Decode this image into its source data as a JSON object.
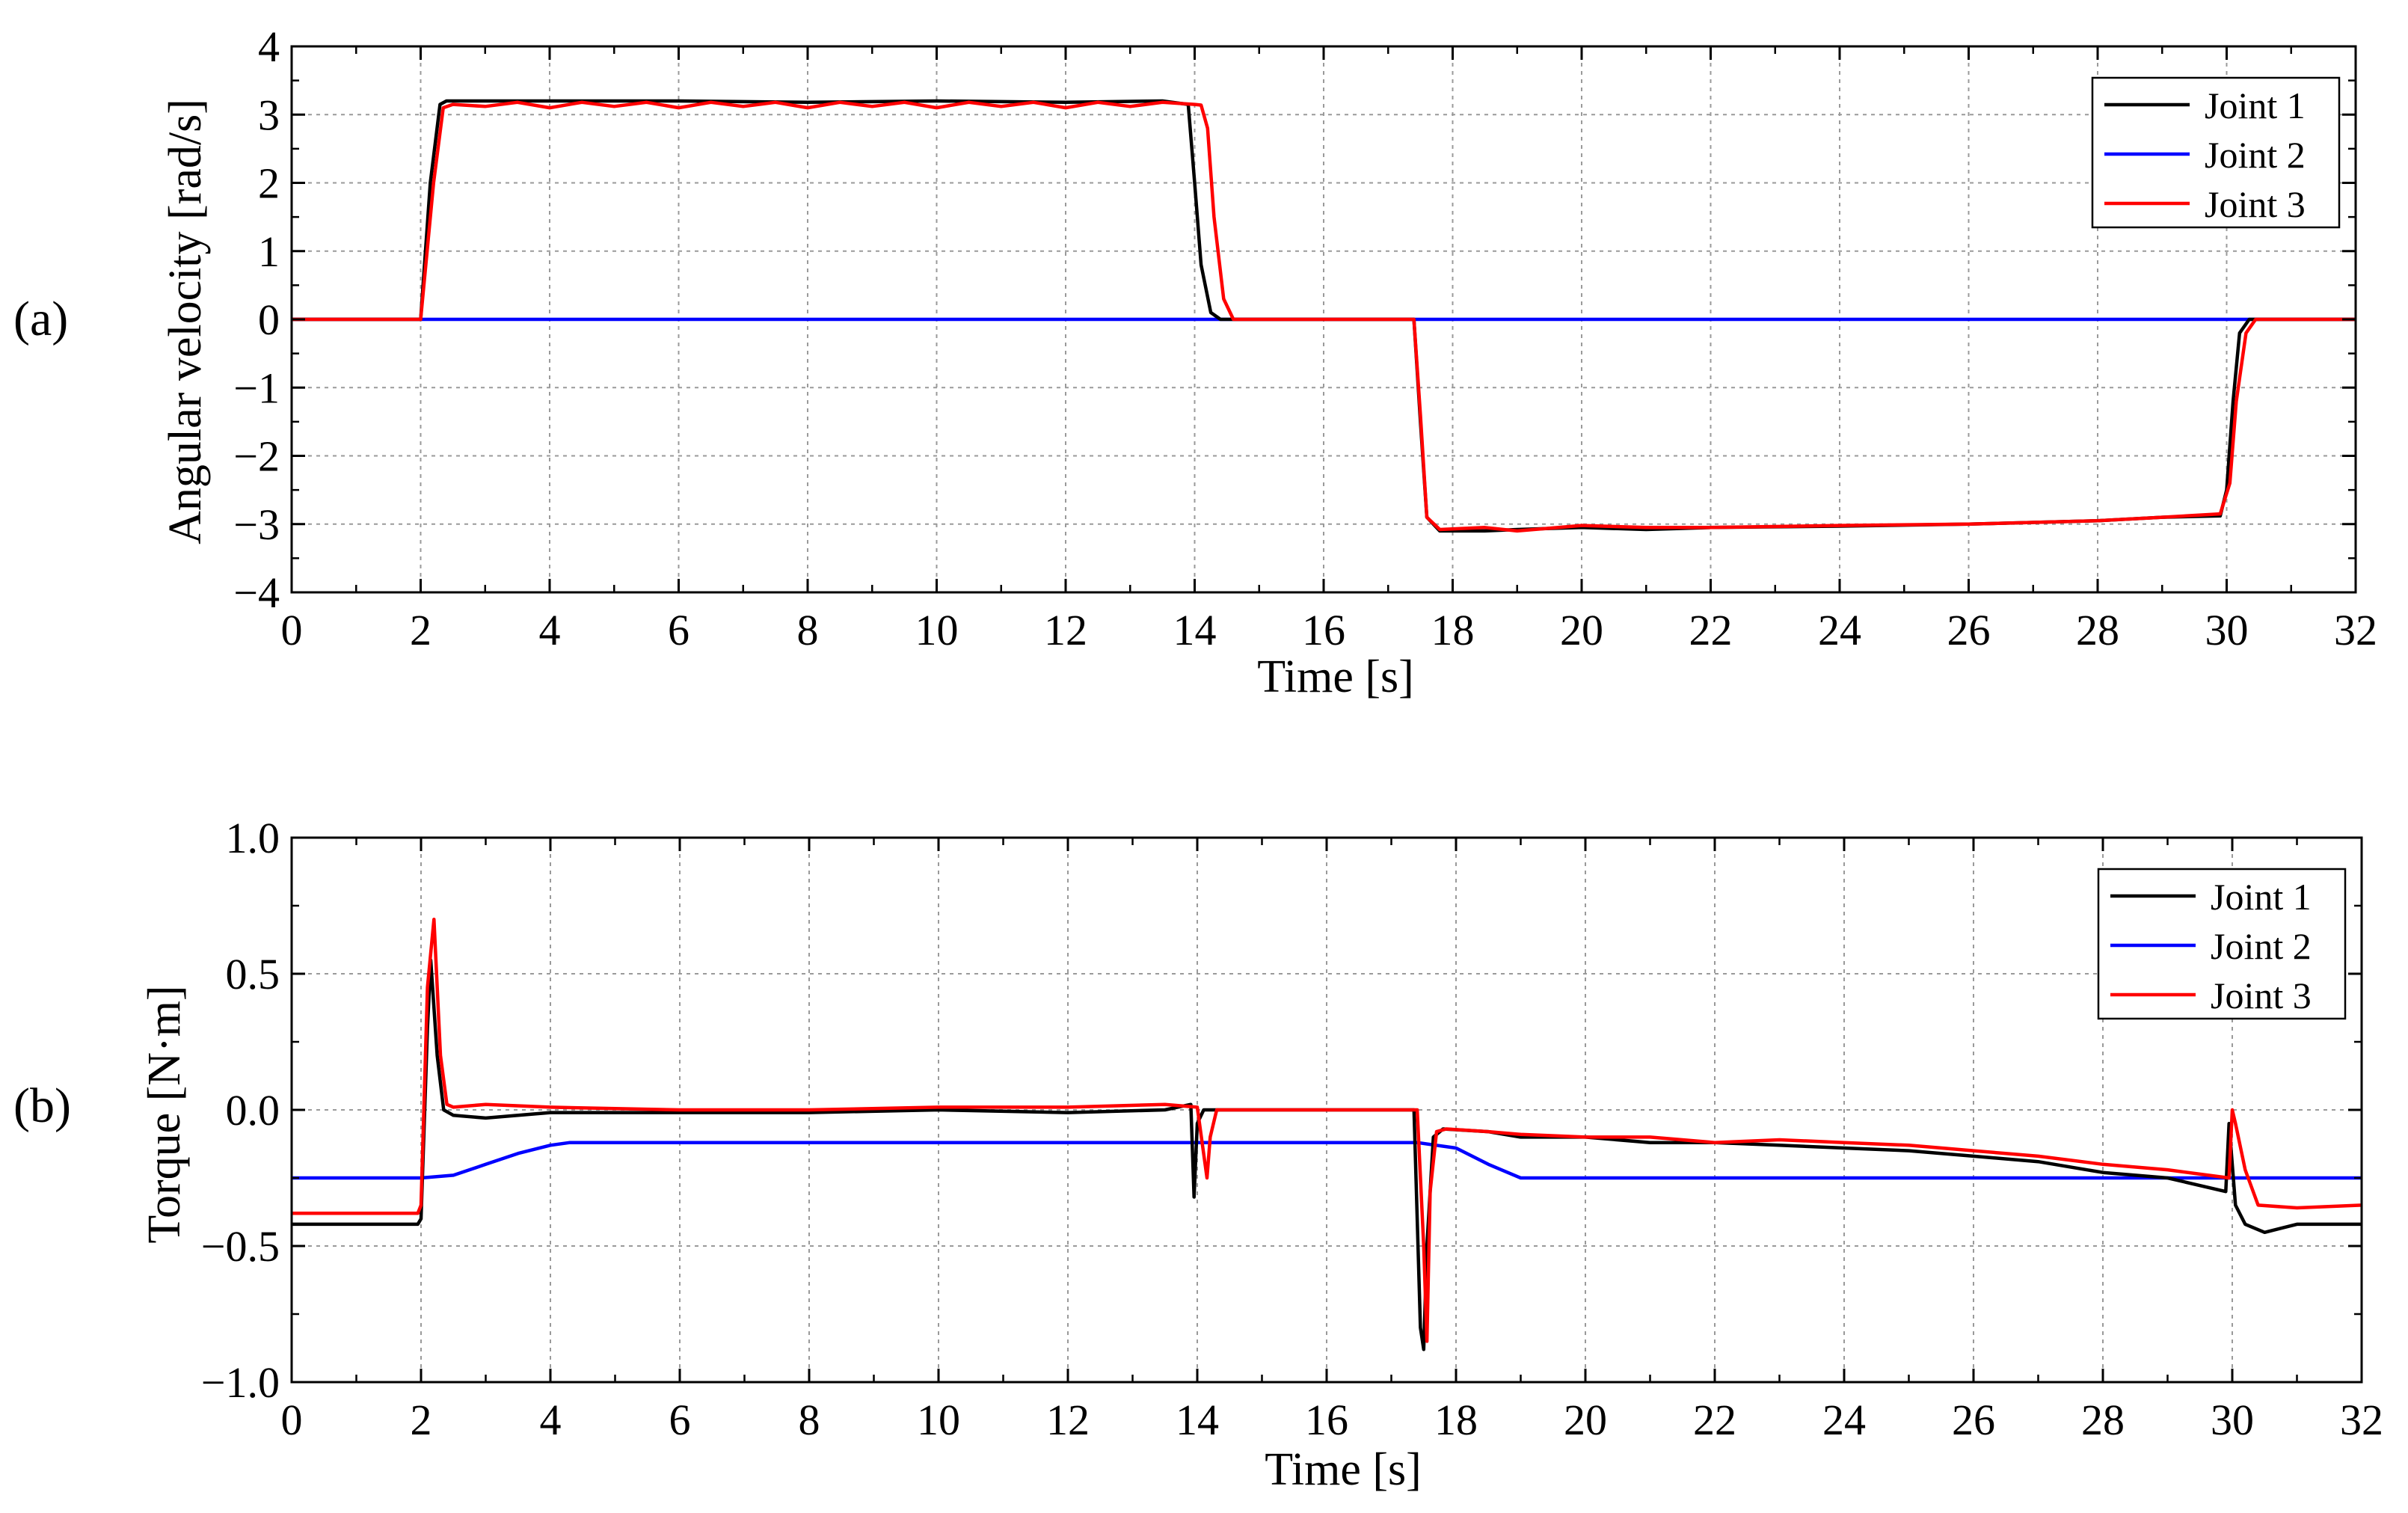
{
  "panels": [
    {
      "tag": "(a)",
      "xlabel": "Time [s]",
      "ylabel": "Angular velocity [rad/s]"
    },
    {
      "tag": "(b)",
      "xlabel": "Time [s]",
      "ylabel": "Torque [N·m]"
    }
  ],
  "chart_data": [
    {
      "type": "line",
      "title": "",
      "xlabel": "Time [s]",
      "ylabel": "Angular velocity [rad/s]",
      "xlim": [
        0,
        32
      ],
      "ylim": [
        -4,
        4
      ],
      "xticks": [
        0,
        2,
        4,
        6,
        8,
        10,
        12,
        14,
        16,
        18,
        20,
        22,
        24,
        26,
        28,
        30,
        32
      ],
      "yticks": [
        -4,
        -3,
        -2,
        -1,
        0,
        1,
        2,
        3,
        4
      ],
      "ytick_labels": [
        "−4",
        "−3",
        "−2",
        "−1",
        "0",
        "1",
        "2",
        "3",
        "4"
      ],
      "grid": true,
      "legend_position": "top-right",
      "series": [
        {
          "name": "Joint 1",
          "color": "#000000",
          "x": [
            0,
            2.0,
            2.15,
            2.3,
            2.4,
            4,
            6,
            8,
            10,
            12,
            13.5,
            13.9,
            14.0,
            14.1,
            14.25,
            14.4,
            17.4,
            17.5,
            17.6,
            17.8,
            18.5,
            19,
            20,
            21,
            22,
            24,
            26,
            28,
            29,
            29.9,
            30.0,
            30.1,
            30.2,
            30.35,
            32
          ],
          "y": [
            0,
            0,
            2.0,
            3.15,
            3.2,
            3.2,
            3.2,
            3.18,
            3.2,
            3.18,
            3.2,
            3.15,
            2.0,
            0.8,
            0.1,
            0,
            0,
            -1.5,
            -2.9,
            -3.1,
            -3.1,
            -3.08,
            -3.05,
            -3.08,
            -3.05,
            -3.03,
            -3.0,
            -2.95,
            -2.9,
            -2.88,
            -2.5,
            -1.2,
            -0.2,
            0,
            0
          ]
        },
        {
          "name": "Joint 2",
          "color": "#0000ff",
          "x": [
            0,
            32
          ],
          "y": [
            0,
            0
          ]
        },
        {
          "name": "Joint 3",
          "color": "#ff0000",
          "x": [
            0,
            2.0,
            2.2,
            2.35,
            2.5,
            3,
            3.5,
            4,
            4.5,
            5,
            5.5,
            6,
            6.5,
            7,
            7.5,
            8,
            8.5,
            9,
            9.5,
            10,
            10.5,
            11,
            11.5,
            12,
            12.5,
            13,
            13.5,
            14,
            14.1,
            14.2,
            14.3,
            14.45,
            14.6,
            17.4,
            17.5,
            17.6,
            17.8,
            18.5,
            19,
            20,
            21,
            22,
            24,
            26,
            28,
            29,
            29.9,
            30.05,
            30.15,
            30.3,
            30.45,
            32
          ],
          "y": [
            0,
            0,
            2.0,
            3.1,
            3.15,
            3.12,
            3.18,
            3.1,
            3.18,
            3.12,
            3.18,
            3.1,
            3.18,
            3.12,
            3.18,
            3.1,
            3.18,
            3.12,
            3.18,
            3.1,
            3.18,
            3.12,
            3.18,
            3.1,
            3.18,
            3.12,
            3.18,
            3.15,
            3.14,
            2.8,
            1.5,
            0.3,
            0,
            0,
            -1.4,
            -2.9,
            -3.08,
            -3.05,
            -3.1,
            -3.02,
            -3.05,
            -3.05,
            -3.02,
            -3.0,
            -2.95,
            -2.9,
            -2.85,
            -2.4,
            -1.2,
            -0.2,
            0,
            0
          ]
        }
      ]
    },
    {
      "type": "line",
      "title": "",
      "xlabel": "Time [s]",
      "ylabel": "Torque [N·m]",
      "xlim": [
        0,
        32
      ],
      "ylim": [
        -1.0,
        1.0
      ],
      "xticks": [
        0,
        2,
        4,
        6,
        8,
        10,
        12,
        14,
        16,
        18,
        20,
        22,
        24,
        26,
        28,
        30,
        32
      ],
      "yticks": [
        -1.0,
        -0.5,
        0.0,
        0.5,
        1.0
      ],
      "ytick_labels": [
        "−1.0",
        "−0.5",
        "0.0",
        "0.5",
        "1.0"
      ],
      "grid": true,
      "legend_position": "top-right",
      "series": [
        {
          "name": "Joint 1",
          "color": "#000000",
          "x": [
            0,
            1.0,
            1.95,
            2.0,
            2.1,
            2.15,
            2.25,
            2.35,
            2.5,
            3,
            4,
            6,
            8,
            10,
            12,
            13.5,
            13.9,
            13.95,
            14.0,
            14.1,
            14.4,
            17.35,
            17.45,
            17.5,
            17.55,
            17.65,
            17.8,
            18.5,
            19,
            20,
            21,
            22,
            23,
            24,
            25,
            26,
            27,
            28,
            29,
            29.9,
            29.95,
            30.05,
            30.2,
            30.5,
            31,
            32
          ],
          "y": [
            -0.42,
            -0.42,
            -0.42,
            -0.4,
            0.3,
            0.55,
            0.2,
            0.0,
            -0.02,
            -0.03,
            -0.01,
            -0.01,
            -0.01,
            0.0,
            -0.01,
            0.0,
            0.02,
            -0.32,
            -0.05,
            0.0,
            0.0,
            0.0,
            -0.8,
            -0.88,
            -0.5,
            -0.1,
            -0.07,
            -0.08,
            -0.1,
            -0.1,
            -0.12,
            -0.12,
            -0.13,
            -0.14,
            -0.15,
            -0.17,
            -0.19,
            -0.23,
            -0.25,
            -0.3,
            -0.05,
            -0.35,
            -0.42,
            -0.45,
            -0.42,
            -0.42
          ]
        },
        {
          "name": "Joint 2",
          "color": "#0000ff",
          "x": [
            0,
            2.0,
            2.5,
            3.0,
            3.5,
            4.0,
            4.3,
            6,
            10,
            14,
            17.4,
            18,
            18.5,
            19,
            20,
            24,
            28,
            30,
            32
          ],
          "y": [
            -0.25,
            -0.25,
            -0.24,
            -0.2,
            -0.16,
            -0.13,
            -0.12,
            -0.12,
            -0.12,
            -0.12,
            -0.12,
            -0.14,
            -0.2,
            -0.25,
            -0.25,
            -0.25,
            -0.25,
            -0.25,
            -0.25
          ]
        },
        {
          "name": "Joint 3",
          "color": "#ff0000",
          "x": [
            0,
            1.0,
            1.95,
            2.0,
            2.1,
            2.2,
            2.3,
            2.4,
            2.5,
            3,
            4,
            6,
            8,
            10,
            12,
            13.5,
            14.0,
            14.15,
            14.2,
            14.3,
            14.5,
            17.4,
            17.5,
            17.55,
            17.6,
            17.7,
            17.85,
            18.5,
            19,
            20,
            21,
            22,
            23,
            24,
            25,
            26,
            27,
            28,
            29,
            29.95,
            30.0,
            30.05,
            30.2,
            30.4,
            31,
            32
          ],
          "y": [
            -0.38,
            -0.38,
            -0.38,
            -0.35,
            0.45,
            0.7,
            0.2,
            0.02,
            0.01,
            0.02,
            0.01,
            0.0,
            0.0,
            0.01,
            0.01,
            0.02,
            0.01,
            -0.25,
            -0.1,
            0.0,
            0.0,
            0.0,
            -0.5,
            -0.85,
            -0.3,
            -0.08,
            -0.07,
            -0.08,
            -0.09,
            -0.1,
            -0.1,
            -0.12,
            -0.11,
            -0.12,
            -0.13,
            -0.15,
            -0.17,
            -0.2,
            -0.22,
            -0.25,
            0.0,
            -0.05,
            -0.22,
            -0.35,
            -0.36,
            -0.35
          ]
        }
      ]
    }
  ]
}
